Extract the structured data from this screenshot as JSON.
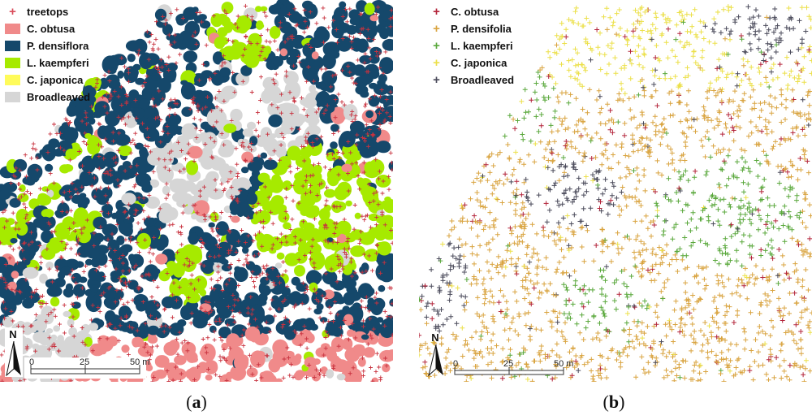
{
  "panel_a": {
    "legend": [
      {
        "label": "treetops",
        "type": "plus",
        "color": "#d94b5a"
      },
      {
        "label": "C. obtusa",
        "type": "swatch",
        "color": "#f08a8a"
      },
      {
        "label": "P. densiflora",
        "type": "swatch",
        "color": "#15486b"
      },
      {
        "label": "L. kaempferi",
        "type": "swatch",
        "color": "#a6ea00"
      },
      {
        "label": "C. japonica",
        "type": "swatch",
        "color": "#fffb5a"
      },
      {
        "label": "Broadleaved",
        "type": "swatch",
        "color": "#d6d6d6"
      }
    ],
    "north": "N",
    "scale_ticks": [
      "0",
      "25",
      "50 m"
    ],
    "caption": {
      "open": "(",
      "letter": "a",
      "close": ")"
    }
  },
  "panel_b": {
    "legend": [
      {
        "label": "C. obtusa",
        "type": "plus",
        "color": "#b3243a"
      },
      {
        "label": "P. densifolia",
        "type": "plus",
        "color": "#d9a440"
      },
      {
        "label": "L. kaempferi",
        "type": "plus",
        "color": "#5aa83c"
      },
      {
        "label": "C. japonica",
        "type": "plus",
        "color": "#ece04a"
      },
      {
        "label": "Broadleaved",
        "type": "plus",
        "color": "#4a4a5a"
      }
    ],
    "north": "N",
    "scale_ticks": [
      "0",
      "25",
      "50 m"
    ],
    "caption": {
      "open": "(",
      "letter": "b",
      "close": ")"
    }
  }
}
